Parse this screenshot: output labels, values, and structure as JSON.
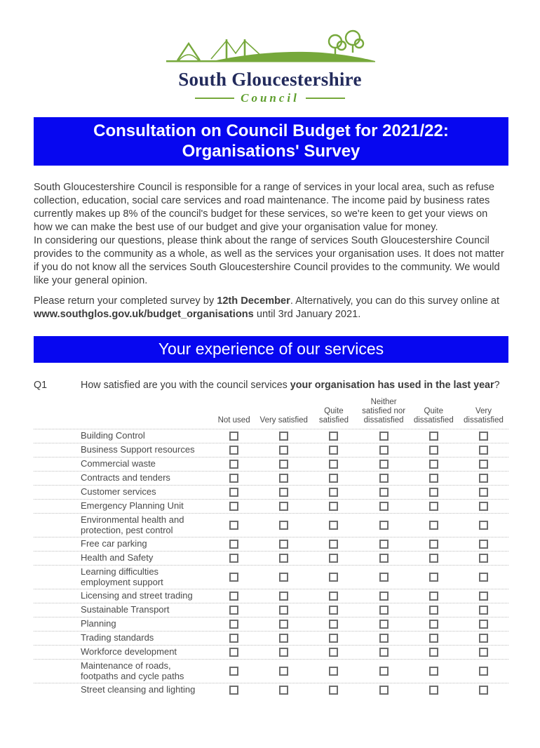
{
  "logo": {
    "name_line": "South Gloucestershire",
    "council_line": "Council",
    "navy_color": "#232b5c",
    "green_color": "#76a83b"
  },
  "title_banner": {
    "line1": "Consultation on Council Budget for 2021/22:",
    "line2": "Organisations' Survey",
    "bg_color": "#0707f0",
    "text_color": "#ffffff"
  },
  "intro": {
    "para1": "South Gloucestershire Council is responsible for a range of services in your local area, such as refuse collection, education, social care services and road maintenance. The income paid by business rates currently makes up 8% of the council's budget for these services, so we're keen to get your views on how we can make the best use of our budget and give your organisation value for money.",
    "para2": "In considering our questions, please think about the range of services South Gloucestershire Council provides to the community as a whole, as well as the services your organisation uses. It does not matter if you do not know all the services South Gloucestershire Council provides to the community. We would like your general opinion.",
    "para3": {
      "part1": "Please return your completed survey by ",
      "bold1": "12th December",
      "part2": ". Alternatively, you can do this survey online at ",
      "bold2": "www.southglos.gov.uk/budget_organisations",
      "part3": " until 3rd January 2021."
    }
  },
  "section_banner": {
    "label": "Your experience of our services"
  },
  "question": {
    "number": "Q1",
    "part1": "How satisfied are you with the council services ",
    "bold": "your organisation has used in the last year",
    "part2": "?"
  },
  "table": {
    "columns": [
      "Not used",
      "Very satisfied",
      "Quite\nsatisfied",
      "Neither\nsatisfied nor\ndissatisfied",
      "Quite\ndissatisfied",
      "Very\ndissatisfied"
    ],
    "rows": [
      "Building Control",
      "Business Support resources",
      "Commercial waste",
      "Contracts and tenders",
      "Customer services",
      "Emergency Planning Unit",
      "Environmental health and\nprotection, pest control",
      "Free car parking",
      "Health and Safety",
      "Learning difficulties\nemployment support",
      "Licensing and street trading",
      "Sustainable Transport",
      "Planning",
      "Trading standards",
      "Workforce development",
      "Maintenance of roads,\nfootpaths and cycle paths",
      "Street cleansing and lighting"
    ]
  }
}
